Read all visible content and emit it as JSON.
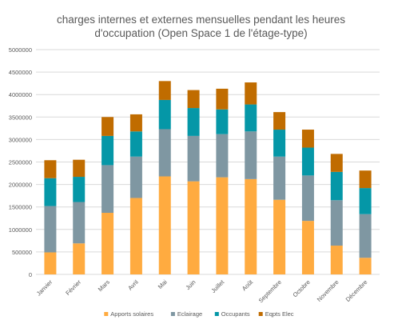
{
  "chart_data": {
    "type": "bar",
    "stacked": true,
    "title_lines": [
      "charges internes et externes mensuelles pendant les heures",
      "d'occupation (Open Space 1 de l'étage-type)"
    ],
    "xlabel": "",
    "ylabel": "",
    "ylim": [
      0,
      5000000
    ],
    "yticks": [
      "0",
      "500000",
      "1000000",
      "1500000",
      "2000000",
      "2500000",
      "3000000",
      "3500000",
      "4000000",
      "4500000",
      "5000000"
    ],
    "grid": true,
    "legend_position": "bottom",
    "categories": [
      "Janvier",
      "Février",
      "Mars",
      "Avril",
      "Mai",
      "Juin",
      "Juillet",
      "Août",
      "Septembre",
      "Octobre",
      "Novembre",
      "Décembre"
    ],
    "series": [
      {
        "name": "Apports solaires",
        "color": "#FFAB40",
        "values": [
          490000,
          690000,
          1370000,
          1700000,
          2180000,
          2070000,
          2160000,
          2120000,
          1660000,
          1190000,
          640000,
          370000
        ]
      },
      {
        "name": "Eclairage",
        "color": "#7F97A2",
        "values": [
          1030000,
          920000,
          1060000,
          920000,
          1050000,
          1010000,
          960000,
          1060000,
          960000,
          1010000,
          1010000,
          970000
        ]
      },
      {
        "name": "Occupants",
        "color": "#0597A7",
        "values": [
          620000,
          560000,
          650000,
          560000,
          650000,
          620000,
          550000,
          600000,
          600000,
          620000,
          630000,
          580000
        ]
      },
      {
        "name": "Eqpts Elec",
        "color": "#C06C00",
        "values": [
          400000,
          380000,
          420000,
          380000,
          420000,
          400000,
          460000,
          490000,
          390000,
          400000,
          400000,
          390000
        ]
      }
    ]
  }
}
